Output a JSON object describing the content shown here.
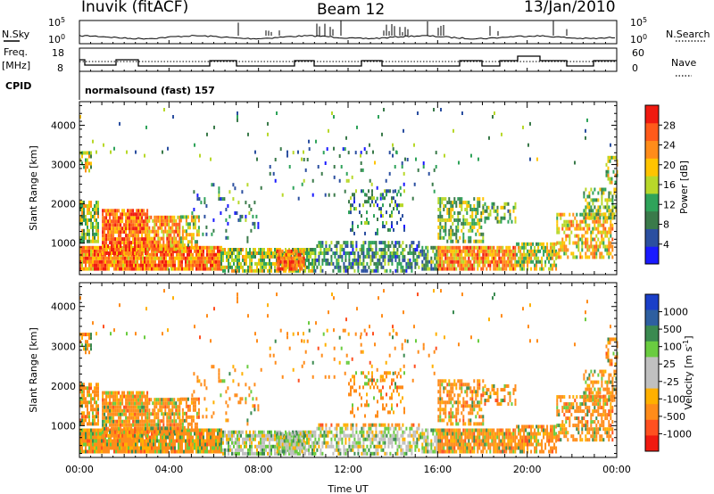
{
  "header": {
    "station": "Inuvik (fitACF)",
    "beam": "Beam 12",
    "date": "13/Jan/2010"
  },
  "ancillary": {
    "nsky_label": "N.Sky",
    "nsky_ticks": [
      "10^5",
      "10^0"
    ],
    "nsearch_label": "N.Search",
    "nsearch_ticks": [
      "10^5",
      "10^0"
    ],
    "freq_label": "Freq.",
    "freq_unit": "[MHz]",
    "freq_ticks": [
      "18",
      "8"
    ],
    "nave_label": "Nave",
    "nave_ticks": [
      "60",
      "0"
    ],
    "cpid_label": "CPID",
    "cpid_value": "normalsound (fast) 157"
  },
  "colors": {
    "power_scale": [
      "#1a1aff",
      "#2b4fa0",
      "#3a7a4a",
      "#2fa35a",
      "#b8d82a",
      "#ffc400",
      "#ff8c1a",
      "#ff5a1a",
      "#f01a10"
    ],
    "velocity_scale": [
      "#1a3fc8",
      "#2e5fa0",
      "#3a8a50",
      "#6acc40",
      "#c0c0c0",
      "#c0c0c0",
      "#ffb000",
      "#ff8c1a",
      "#ff5020",
      "#f01a10"
    ]
  },
  "chart_data": [
    {
      "type": "heatmap",
      "panel": "power",
      "ylabel": "Slant Range [km]",
      "yticks": [
        "1000",
        "2000",
        "3000",
        "4000"
      ],
      "ylim": [
        200,
        4600
      ],
      "xlim": [
        "00:00",
        "24:00"
      ],
      "colorbar_label": "Power [dB]",
      "colorbar_ticks": [
        "4",
        "8",
        "12",
        "16",
        "20",
        "24",
        "28"
      ],
      "colorbar_range": [
        0,
        30
      ]
    },
    {
      "type": "heatmap",
      "panel": "velocity",
      "ylabel": "Slant Range [km]",
      "yticks": [
        "1000",
        "2000",
        "3000",
        "4000"
      ],
      "ylim": [
        200,
        4600
      ],
      "xlim": [
        "00:00",
        "24:00"
      ],
      "xticks": [
        "00:00",
        "04:00",
        "08:00",
        "12:00",
        "16:00",
        "20:00",
        "00:00"
      ],
      "xlabel": "Time UT",
      "colorbar_label": "Velocity [m s^-1]",
      "colorbar_ticks": [
        "1000",
        "500",
        "100",
        "25",
        "-25",
        "-100",
        "-500",
        "-1000"
      ]
    }
  ]
}
